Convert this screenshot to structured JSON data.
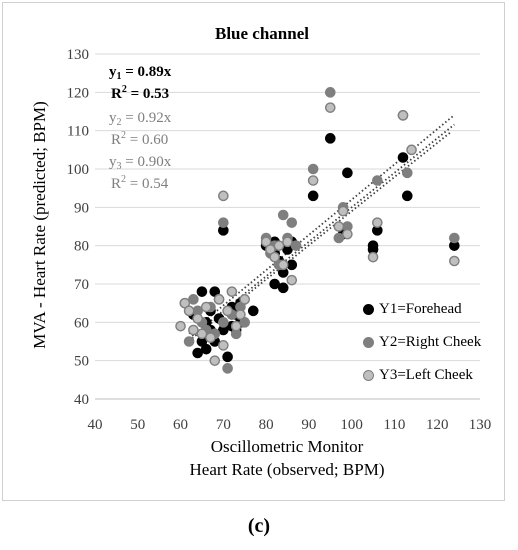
{
  "panel_label": "(c)",
  "colors": {
    "y1": "#000000",
    "y2": "#7f7f7f",
    "y3_fill": "#bfbfbf",
    "y3_edge": "#7f7f7f",
    "trend": "#404040",
    "grid": "#d9d9d9"
  },
  "equations": [
    {
      "sym": "y",
      "sub": "1",
      "rhs": " = 0.89x",
      "r2": " = 0.53",
      "color": "#000000",
      "bold": true
    },
    {
      "sym": "y",
      "sub": "2",
      "rhs": " = 0.92x",
      "r2": " = 0.60",
      "color": "#7f7f7f",
      "bold": false
    },
    {
      "sym": "y",
      "sub": "3",
      "rhs": " = 0.90x",
      "r2": " = 0.54",
      "color": "#7f7f7f",
      "bold": false
    }
  ],
  "chart_data": {
    "type": "scatter",
    "title": "Blue channel",
    "xlabel_line1": "Oscillometric Monitor",
    "xlabel_line2": "Heart Rate (observed; BPM)",
    "ylabel": "MVA - Heart Rate (predicted; BPM)",
    "xlim": [
      40,
      130
    ],
    "ylim": [
      40,
      130
    ],
    "xticks": [
      40,
      50,
      60,
      70,
      80,
      90,
      100,
      110,
      120,
      130
    ],
    "yticks": [
      40,
      50,
      60,
      70,
      80,
      90,
      100,
      110,
      120,
      130
    ],
    "grid": "horizontal",
    "legend_position": "bottom-right",
    "series": [
      {
        "name": "Y1=Forehead",
        "slope": 0.89,
        "r2": 0.53,
        "points": [
          [
            63,
            62
          ],
          [
            64,
            52
          ],
          [
            65,
            68
          ],
          [
            65,
            55
          ],
          [
            66,
            53
          ],
          [
            66,
            60
          ],
          [
            67,
            63
          ],
          [
            67,
            58
          ],
          [
            68,
            68
          ],
          [
            68,
            55
          ],
          [
            69,
            61
          ],
          [
            70,
            58
          ],
          [
            71,
            51
          ],
          [
            72,
            64
          ],
          [
            72,
            59
          ],
          [
            73,
            62
          ],
          [
            73,
            58
          ],
          [
            74,
            60
          ],
          [
            74,
            65
          ],
          [
            77,
            63
          ],
          [
            70,
            84
          ],
          [
            80,
            80
          ],
          [
            82,
            81
          ],
          [
            82,
            78
          ],
          [
            82,
            70
          ],
          [
            83,
            76
          ],
          [
            84,
            73
          ],
          [
            84,
            69
          ],
          [
            85,
            79
          ],
          [
            86,
            75
          ],
          [
            86,
            81
          ],
          [
            91,
            93
          ],
          [
            95,
            108
          ],
          [
            98,
            83
          ],
          [
            99,
            99
          ],
          [
            105,
            80
          ],
          [
            105,
            79
          ],
          [
            106,
            84
          ],
          [
            112,
            103
          ],
          [
            113,
            93
          ],
          [
            124,
            80
          ]
        ]
      },
      {
        "name": "Y2=Right Cheek",
        "slope": 0.92,
        "r2": 0.6,
        "points": [
          [
            61,
            65
          ],
          [
            62,
            55
          ],
          [
            63,
            66
          ],
          [
            64,
            63
          ],
          [
            65,
            60
          ],
          [
            66,
            58
          ],
          [
            67,
            64
          ],
          [
            68,
            57
          ],
          [
            69,
            66
          ],
          [
            70,
            60
          ],
          [
            71,
            48
          ],
          [
            72,
            62
          ],
          [
            73,
            57
          ],
          [
            74,
            64
          ],
          [
            75,
            60
          ],
          [
            70,
            86
          ],
          [
            80,
            82
          ],
          [
            81,
            78
          ],
          [
            82,
            80
          ],
          [
            83,
            75
          ],
          [
            84,
            88
          ],
          [
            85,
            82
          ],
          [
            86,
            86
          ],
          [
            87,
            80
          ],
          [
            91,
            100
          ],
          [
            95,
            120
          ],
          [
            97,
            82
          ],
          [
            98,
            90
          ],
          [
            99,
            85
          ],
          [
            106,
            97
          ],
          [
            112,
            114
          ],
          [
            113,
            99
          ],
          [
            124,
            82
          ]
        ]
      },
      {
        "name": "Y3=Left Cheek",
        "slope": 0.9,
        "r2": 0.54,
        "points": [
          [
            60,
            59
          ],
          [
            61,
            65
          ],
          [
            62,
            63
          ],
          [
            63,
            58
          ],
          [
            64,
            61
          ],
          [
            65,
            57
          ],
          [
            66,
            64
          ],
          [
            67,
            56
          ],
          [
            68,
            50
          ],
          [
            69,
            66
          ],
          [
            70,
            54
          ],
          [
            71,
            63
          ],
          [
            72,
            68
          ],
          [
            73,
            59
          ],
          [
            74,
            62
          ],
          [
            75,
            66
          ],
          [
            70,
            93
          ],
          [
            80,
            81
          ],
          [
            81,
            79
          ],
          [
            82,
            77
          ],
          [
            83,
            80
          ],
          [
            84,
            75
          ],
          [
            85,
            81
          ],
          [
            86,
            71
          ],
          [
            91,
            97
          ],
          [
            95,
            116
          ],
          [
            97,
            85
          ],
          [
            98,
            89
          ],
          [
            99,
            83
          ],
          [
            105,
            77
          ],
          [
            106,
            86
          ],
          [
            112,
            114
          ],
          [
            114,
            105
          ],
          [
            124,
            76
          ]
        ]
      }
    ]
  }
}
